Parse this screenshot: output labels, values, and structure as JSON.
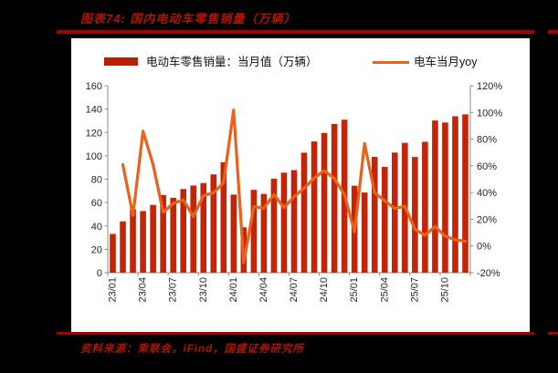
{
  "page": {
    "background_color": "#000000",
    "panel_color": "#ffffff",
    "rule_color": "#9E0500",
    "accent_text_color": "#B01400"
  },
  "header": {
    "title": "图表74: 国内电动车零售销量（万辆）"
  },
  "footer": {
    "source": "资料来源：乘联会，iFind，国盛证券研究所"
  },
  "legend": {
    "bar_label": "电动车零售销量：当月值（万辆）",
    "line_label": "电车当月yoy"
  },
  "chart_data": {
    "type": "bar+line",
    "title": "国内电动车零售销量（万辆）",
    "categories": [
      "23/01",
      "23/02",
      "23/03",
      "23/04",
      "23/05",
      "23/06",
      "23/07",
      "23/08",
      "23/09",
      "23/10",
      "23/11",
      "23/12",
      "24/01",
      "24/02",
      "24/03",
      "24/04",
      "24/05",
      "24/06",
      "24/07",
      "24/08",
      "24/09",
      "24/10",
      "24/11",
      "24/12",
      "25/01",
      "25/02",
      "25/03",
      "25/04",
      "25/05",
      "25/06",
      "25/07",
      "25/08",
      "25/09",
      "25/10",
      "25/11",
      "25/12"
    ],
    "series": [
      {
        "name": "电动车零售销量：当月值（万辆）",
        "type": "bar",
        "axis": "left",
        "color": "#C22508",
        "values": [
          33.2,
          43.9,
          54.3,
          52.7,
          58.0,
          66.5,
          64.1,
          71.6,
          74.6,
          76.7,
          84.1,
          94.5,
          66.8,
          38.8,
          70.9,
          67.4,
          80.4,
          85.6,
          87.8,
          102.7,
          112.3,
          119.6,
          127.3,
          130.9,
          74.4,
          68.6,
          99.1,
          90.5,
          102.8,
          111.1,
          99.0,
          112.0,
          130.2,
          128.5,
          133.9,
          135.5
        ]
      },
      {
        "name": "电车当月yoy",
        "type": "line",
        "axis": "right",
        "unit": "%",
        "color": "#EC6119",
        "values": [
          null,
          61.0,
          22.9,
          86.0,
          60.9,
          25.2,
          31.9,
          34.5,
          22.1,
          37.8,
          39.8,
          47.3,
          101.8,
          -12.5,
          29.4,
          28.3,
          38.5,
          28.6,
          36.9,
          43.2,
          50.9,
          56.4,
          50.5,
          38.5,
          10.5,
          76.8,
          39.8,
          33.9,
          28.1,
          29.7,
          12.5,
          8.0,
          14.5,
          7.4,
          4.6,
          3.5
        ]
      }
    ],
    "left_axis": {
      "min": 0,
      "max": 160,
      "tick_labels": [
        "0",
        "20",
        "40",
        "60",
        "80",
        "100",
        "120",
        "140",
        "160"
      ]
    },
    "right_axis": {
      "min": -20,
      "max": 120,
      "tick_labels": [
        "-20%",
        "0%",
        "20%",
        "40%",
        "60%",
        "80%",
        "100%",
        "120%"
      ]
    },
    "x_tick_labels": [
      "23/01",
      "23/04",
      "23/07",
      "23/10",
      "24/01",
      "24/04",
      "24/07",
      "24/10",
      "25/01",
      "25/04",
      "25/07",
      "25/10"
    ],
    "x_tick_every": 3,
    "grid": false,
    "legend_position": "top",
    "axis_color": "#8C8C8C",
    "tick_label_color": "#262626"
  }
}
